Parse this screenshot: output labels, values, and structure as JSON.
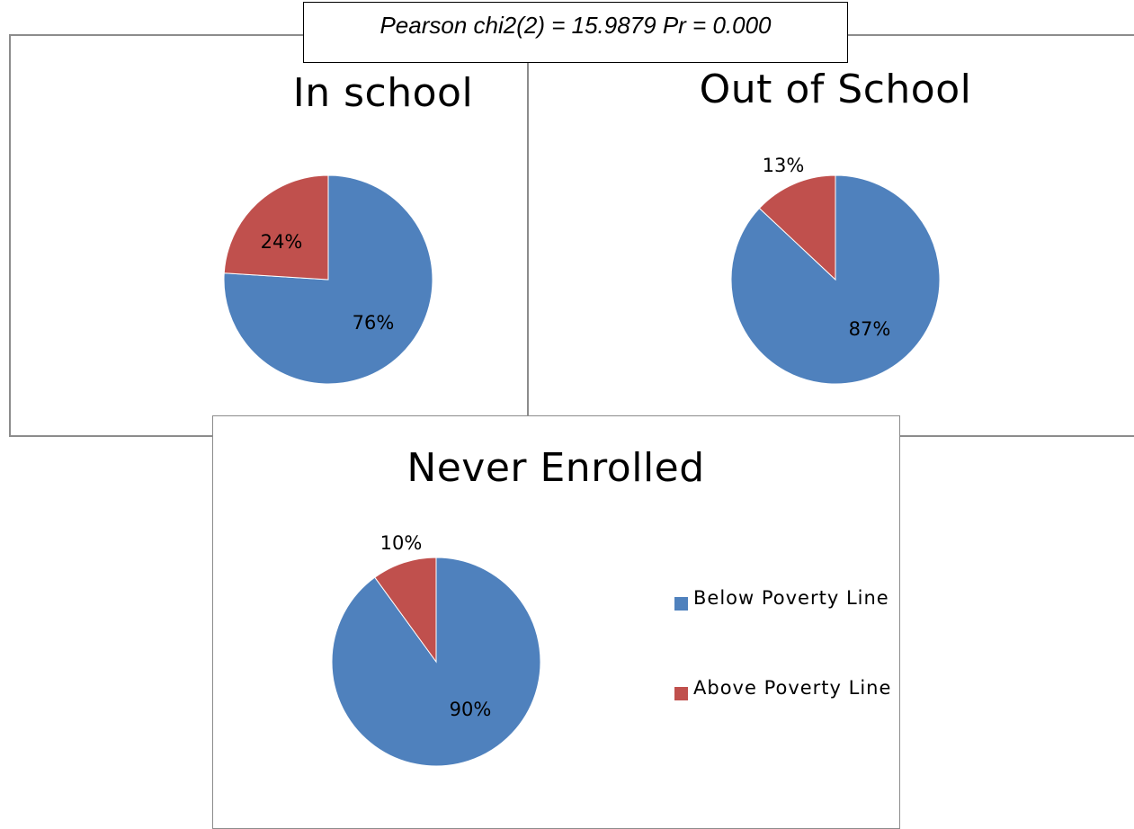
{
  "stat_label": "Pearson chi2(2) = 15.9879 Pr = 0.000",
  "colors": {
    "below": "#4f81bd",
    "above": "#c0504d"
  },
  "legend": [
    {
      "label": "Below Poverty Line",
      "color": "#4f81bd"
    },
    {
      "label": "Above Poverty Line",
      "color": "#c0504d"
    }
  ],
  "chart_data": [
    {
      "type": "pie",
      "title": "In school",
      "categories": [
        "Below Poverty Line",
        "Above Poverty Line"
      ],
      "values": [
        76,
        24
      ],
      "labels": [
        "76%",
        "24%"
      ]
    },
    {
      "type": "pie",
      "title": "Out of School",
      "categories": [
        "Below Poverty Line",
        "Above Poverty Line"
      ],
      "values": [
        87,
        13
      ],
      "labels": [
        "87%",
        "13%"
      ]
    },
    {
      "type": "pie",
      "title": "Never Enrolled",
      "categories": [
        "Below Poverty Line",
        "Above Poverty Line"
      ],
      "values": [
        90,
        10
      ],
      "labels": [
        "90%",
        "10%"
      ],
      "legend": "right"
    }
  ]
}
